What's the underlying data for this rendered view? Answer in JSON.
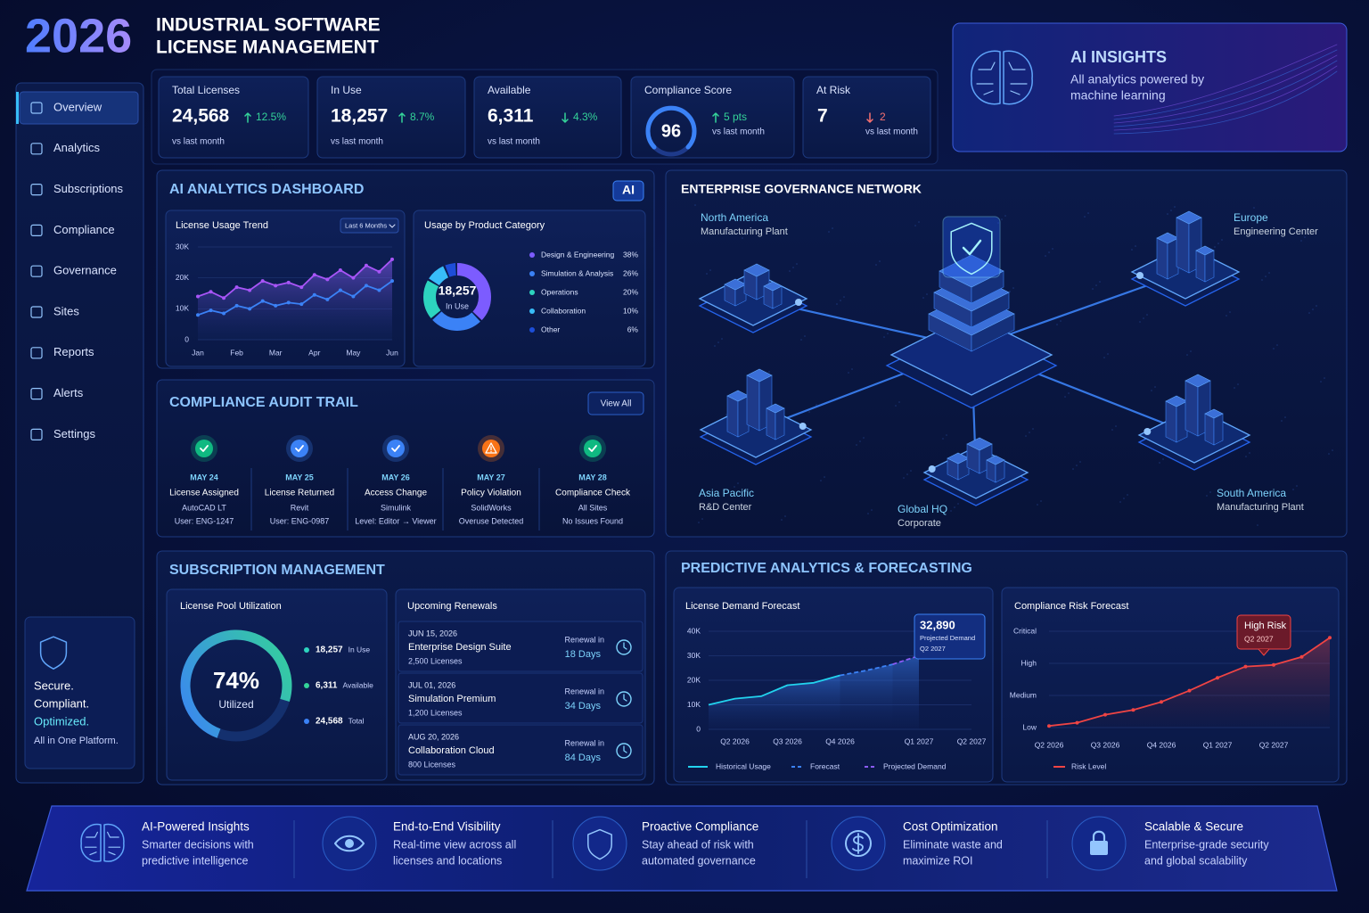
{
  "header": {
    "year": "2026",
    "title_line1": "INDUSTRIAL SOFTWARE",
    "title_line2": "LICENSE MANAGEMENT"
  },
  "ai_insights": {
    "title": "AI INSIGHTS",
    "subtitle": [
      "All analytics powered by",
      "machine learning"
    ]
  },
  "sidebar": {
    "items": [
      "Overview",
      "Analytics",
      "Subscriptions",
      "Compliance",
      "Governance",
      "Sites",
      "Reports",
      "Alerts",
      "Settings"
    ],
    "active_index": 0,
    "footer": {
      "lines": [
        "Secure.",
        "Compliant.",
        "Optimized."
      ],
      "tagline": "All in One Platform."
    }
  },
  "kpis": [
    {
      "label": "Total Licenses",
      "value": "24,568",
      "change": "12.5%",
      "direction": "up",
      "color": "#34d399",
      "note": "vs last month"
    },
    {
      "label": "In Use",
      "value": "18,257",
      "change": "8.7%",
      "direction": "up",
      "color": "#34d399",
      "note": "vs last month"
    },
    {
      "label": "Available",
      "value": "6,311",
      "change": "4.3%",
      "direction": "down",
      "color": "#34d399",
      "note": "vs last month"
    },
    {
      "label": "Compliance Score",
      "value": "96",
      "change": "5 pts",
      "direction": "up",
      "color": "#34d399",
      "note": "vs last month"
    },
    {
      "label": "At Risk",
      "value": "7",
      "change": "2",
      "direction": "down",
      "color": "#f87171",
      "note": "vs last month"
    }
  ],
  "analytics": {
    "title": "AI ANALYTICS DASHBOARD",
    "badge": "AI"
  },
  "audit": {
    "title": "COMPLIANCE AUDIT TRAIL",
    "button": "View All",
    "events": [
      {
        "date": "MAY 24",
        "event": "License Assigned",
        "item": "AutoCAD LT",
        "detail": "User: ENG-1247",
        "status": "ok"
      },
      {
        "date": "MAY 25",
        "event": "License Returned",
        "item": "Revit",
        "detail": "User: ENG-0987",
        "status": "ok"
      },
      {
        "date": "MAY 26",
        "event": "Access Change",
        "item": "Simulink",
        "detail": "Level: Editor → Viewer",
        "status": "ok"
      },
      {
        "date": "MAY 27",
        "event": "Policy Violation",
        "item": "SolidWorks",
        "detail": "Overuse Detected",
        "status": "warning"
      },
      {
        "date": "MAY 28",
        "event": "Compliance Check",
        "item": "All Sites",
        "detail": "No Issues Found",
        "status": "ok"
      }
    ]
  },
  "network": {
    "title": "ENTERPRISE GOVERNANCE NETWORK",
    "nodes": [
      {
        "name": "North America",
        "role": "Manufacturing Plant"
      },
      {
        "name": "Europe",
        "role": "Engineering Center"
      },
      {
        "name": "Asia Pacific",
        "role": "R&D Center"
      },
      {
        "name": "Global HQ",
        "role": "Corporate"
      },
      {
        "name": "South America",
        "role": "Manufacturing Plant"
      }
    ]
  },
  "subscriptions": {
    "title": "SUBSCRIPTION MANAGEMENT",
    "renewals_title": "Upcoming Renewals",
    "renewals": [
      {
        "date": "JUN 15, 2026",
        "product": "Enterprise Design Suite",
        "licenses": "2,500 Licenses",
        "due_label": "Renewal in",
        "due": "18 Days"
      },
      {
        "date": "JUL 01, 2026",
        "product": "Simulation Premium",
        "licenses": "1,200 Licenses",
        "due_label": "Renewal in",
        "due": "34 Days"
      },
      {
        "date": "AUG 20, 2026",
        "product": "Collaboration Cloud",
        "licenses": "800 Licenses",
        "due_label": "Renewal in",
        "due": "84 Days"
      }
    ]
  },
  "predictive": {
    "title": "PREDICTIVE ANALYTICS & FORECASTING"
  },
  "features": [
    {
      "title": "AI-Powered Insights",
      "lines": [
        "Smarter decisions with",
        "predictive intelligence"
      ]
    },
    {
      "title": "End-to-End Visibility",
      "lines": [
        "Real-time view across all",
        "licenses and locations"
      ]
    },
    {
      "title": "Proactive Compliance",
      "lines": [
        "Stay ahead of risk with",
        "automated governance"
      ]
    },
    {
      "title": "Cost Optimization",
      "lines": [
        "Eliminate waste and",
        "maximize ROI"
      ]
    },
    {
      "title": "Scalable & Secure",
      "lines": [
        "Enterprise-grade security",
        "and global scalability"
      ]
    }
  ],
  "chart_data": [
    {
      "type": "line",
      "title": "License Usage Trend",
      "period": "Last 6 Months",
      "categories": [
        "Jan",
        null,
        null,
        "Feb",
        null,
        null,
        "Mar",
        null,
        null,
        "Apr",
        null,
        null,
        "May",
        null,
        null,
        "Jun"
      ],
      "series": [
        {
          "color": "#a855f7",
          "values": [
            14000,
            15500,
            13500,
            17000,
            16000,
            19000,
            17500,
            18500,
            17000,
            21000,
            19500,
            22500,
            20000,
            24000,
            22000,
            26000
          ]
        },
        {
          "color": "#3b82f6",
          "values": [
            8000,
            9500,
            8500,
            11000,
            10000,
            12500,
            11000,
            12000,
            11500,
            14500,
            13000,
            16000,
            14000,
            17500,
            16000,
            19000
          ]
        }
      ],
      "ylim": [
        0,
        30000
      ],
      "yticks": [
        0,
        {
          "value": 10000,
          "label": "10K"
        },
        {
          "value": 20000,
          "label": "20K"
        },
        {
          "value": 30000,
          "label": "30K"
        }
      ],
      "grid": true
    },
    {
      "type": "pie",
      "title": "Usage by Product Category",
      "center_value": "18,257",
      "center_label": "In Use",
      "categories": [
        "Design & Engineering",
        "Simulation & Analysis",
        "Operations",
        "Collaboration",
        "Other"
      ],
      "values": [
        38,
        26,
        20,
        10,
        6
      ],
      "value_labels": [
        "38%",
        "26%",
        "20%",
        "10%",
        "6%"
      ],
      "colors": [
        "#7c5cff",
        "#3b82f6",
        "#2dd4bf",
        "#38bdf8",
        "#1d4ed8"
      ]
    },
    {
      "type": "gauge",
      "title": "License Pool Utilization",
      "values": [
        74
      ],
      "value_labels": [
        "74%"
      ],
      "label": "Utilized",
      "ylim": [
        0,
        100
      ],
      "legend": [
        {
          "value": "18,257",
          "label": "In Use",
          "color": "#2dd4bf"
        },
        {
          "value": "6,311",
          "label": "Available",
          "color": "#34d399"
        },
        {
          "value": "24,568",
          "label": "Total",
          "color": "#3b82f6"
        }
      ]
    },
    {
      "type": "line",
      "title": "License Demand Forecast",
      "categories": [
        null,
        "Q2 2026",
        null,
        "Q3 2026",
        null,
        "Q4 2026",
        null,
        null,
        "Q1 2027",
        null,
        "Q2 2027"
      ],
      "series": [
        {
          "name": "Historical Usage",
          "color": "#22d3ee",
          "dashed": false,
          "values": [
            10000,
            12500,
            13500,
            18000,
            19000,
            22000,
            null,
            null,
            null,
            null,
            null
          ]
        },
        {
          "name": "Forecast",
          "color": "#3b82f6",
          "dashed": true,
          "values": [
            null,
            null,
            null,
            null,
            null,
            22000,
            24000,
            26500,
            null,
            null,
            null
          ]
        },
        {
          "name": "Projected Demand",
          "color": "#8b5cf6",
          "dashed": true,
          "values": [
            null,
            null,
            null,
            null,
            null,
            null,
            null,
            26500,
            30000,
            null,
            null
          ]
        }
      ],
      "annotation": {
        "value_label": "32,890",
        "text": "Projected Demand",
        "period": "Q2 2027"
      },
      "ylim": [
        0,
        40000
      ],
      "yticks": [
        0,
        {
          "value": 10000,
          "label": "10K"
        },
        {
          "value": 20000,
          "label": "20K"
        },
        {
          "value": 30000,
          "label": "30K"
        },
        {
          "value": 40000,
          "label": "40K"
        }
      ],
      "grid": true
    },
    {
      "type": "line",
      "title": "Compliance Risk Forecast",
      "categories": [
        "Q2 2026",
        null,
        "Q3 2026",
        null,
        "Q4 2026",
        null,
        "Q1 2027",
        null,
        "Q2 2027",
        null,
        null
      ],
      "series": [
        {
          "name": "Risk Level",
          "color": "#ef4444",
          "values": [
            1.05,
            1.15,
            1.4,
            1.55,
            1.8,
            2.15,
            2.55,
            2.9,
            2.95,
            3.2,
            3.8
          ]
        }
      ],
      "annotation": {
        "text": "High Risk",
        "period": "Q2 2027"
      },
      "ylim": [
        1,
        4
      ],
      "yticks": [
        {
          "value": 1,
          "label": "Low"
        },
        {
          "value": 2,
          "label": "Medium"
        },
        {
          "value": 3,
          "label": "High"
        },
        {
          "value": 4,
          "label": "Critical"
        }
      ],
      "grid": true
    }
  ]
}
